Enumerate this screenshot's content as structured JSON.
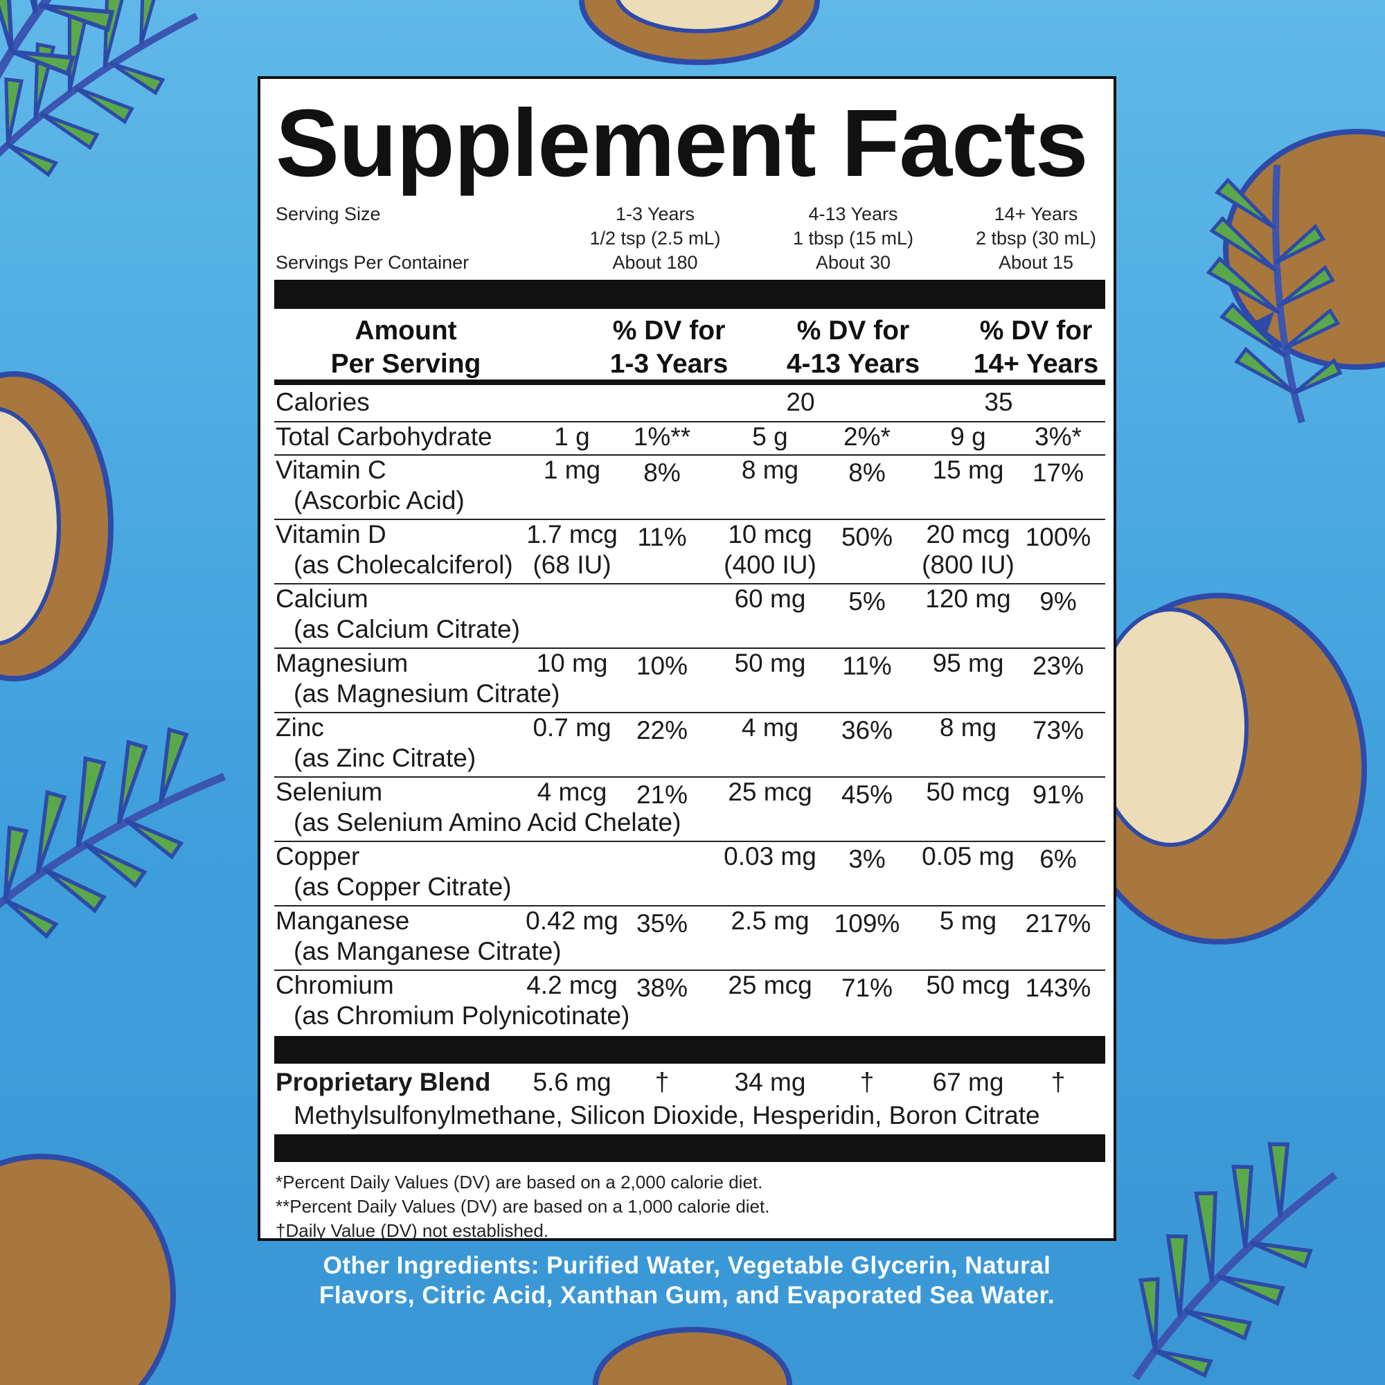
{
  "title": "Supplement Facts",
  "serving": {
    "serving_size_label": "Serving Size",
    "servings_per_container_label": "Servings Per Container",
    "groups": [
      {
        "age": "1-3 Years",
        "size": "1/2 tsp (2.5 mL)",
        "servings": "About 180"
      },
      {
        "age": "4-13 Years",
        "size": "1 tbsp (15 mL)",
        "servings": "About 30"
      },
      {
        "age": "14+ Years",
        "size": "2 tbsp (30 mL)",
        "servings": "About 15"
      }
    ]
  },
  "header": {
    "amount_line1": "Amount",
    "amount_line2": "Per Serving",
    "dv1_line1": "% DV for",
    "dv1_line2": "1-3 Years",
    "dv2_line1": "% DV for",
    "dv2_line2": "4-13 Years",
    "dv3_line1": "% DV for",
    "dv3_line2": "14+ Years"
  },
  "calories": {
    "label": "Calories",
    "v2": "20",
    "v3": "35"
  },
  "carbohydrate": {
    "label": "Total Carbohydrate",
    "a1": "1 g",
    "d1": "1%**",
    "a2": "5 g",
    "d2": "2%*",
    "a3": "9 g",
    "d3": "3%*"
  },
  "nutrients": [
    {
      "name": "Vitamin C",
      "sub": "(Ascorbic Acid)",
      "a1": "1 mg",
      "a1b": "",
      "d1": "8%",
      "a2": "8 mg",
      "a2b": "",
      "d2": "8%",
      "a3": "15 mg",
      "a3b": "",
      "d3": "17%"
    },
    {
      "name": "Vitamin D",
      "sub": "(as Cholecalciferol)",
      "a1": "1.7 mcg",
      "a1b": "(68 IU)",
      "d1": "11%",
      "a2": "10 mcg",
      "a2b": "(400 IU)",
      "d2": "50%",
      "a3": "20 mcg",
      "a3b": "(800 IU)",
      "d3": "100%"
    },
    {
      "name": "Calcium",
      "sub": "(as Calcium Citrate)",
      "a1": "",
      "a1b": "",
      "d1": "",
      "a2": "60 mg",
      "a2b": "",
      "d2": "5%",
      "a3": "120 mg",
      "a3b": "",
      "d3": "9%"
    },
    {
      "name": "Magnesium",
      "sub": "(as Magnesium Citrate)",
      "a1": "10 mg",
      "a1b": "",
      "d1": "10%",
      "a2": "50 mg",
      "a2b": "",
      "d2": "11%",
      "a3": "95 mg",
      "a3b": "",
      "d3": "23%"
    },
    {
      "name": "Zinc",
      "sub": "(as Zinc Citrate)",
      "a1": "0.7 mg",
      "a1b": "",
      "d1": "22%",
      "a2": "4 mg",
      "a2b": "",
      "d2": "36%",
      "a3": "8 mg",
      "a3b": "",
      "d3": "73%"
    },
    {
      "name": "Selenium",
      "sub": "(as Selenium Amino Acid Chelate)",
      "a1": "4 mcg",
      "a1b": "",
      "d1": "21%",
      "a2": "25 mcg",
      "a2b": "",
      "d2": "45%",
      "a3": "50 mcg",
      "a3b": "",
      "d3": "91%"
    },
    {
      "name": "Copper",
      "sub": "(as Copper Citrate)",
      "a1": "",
      "a1b": "",
      "d1": "",
      "a2": "0.03 mg",
      "a2b": "",
      "d2": "3%",
      "a3": "0.05 mg",
      "a3b": "",
      "d3": "6%"
    },
    {
      "name": "Manganese",
      "sub": "(as Manganese Citrate)",
      "a1": "0.42 mg",
      "a1b": "",
      "d1": "35%",
      "a2": "2.5 mg",
      "a2b": "",
      "d2": "109%",
      "a3": "5 mg",
      "a3b": "",
      "d3": "217%"
    },
    {
      "name": "Chromium",
      "sub": "(as Chromium Polynicotinate)",
      "a1": "4.2 mcg",
      "a1b": "",
      "d1": "38%",
      "a2": "25 mcg",
      "a2b": "",
      "d2": "71%",
      "a3": "50 mcg",
      "a3b": "",
      "d3": "143%"
    }
  ],
  "blend": {
    "label": "Proprietary Blend",
    "a1": "5.6 mg",
    "d1": "†",
    "a2": "34 mg",
    "d2": "†",
    "a3": "67 mg",
    "d3": "†",
    "ingredients": "Methylsulfonylmethane, Silicon Dioxide, Hesperidin, Boron Citrate"
  },
  "footnotes": {
    "f1": "*Percent Daily Values (DV) are based on a 2,000 calorie diet.",
    "f2": "**Percent Daily Values (DV) are based on a 1,000 calorie diet.",
    "f3": "†Daily Value (DV) not established."
  },
  "other_ingredients": {
    "line1": "Other Ingredients: Purified Water, Vegetable Glycerin, Natural",
    "line2": "Flavors, Citric Acid, Xanthan Gum, and Evaporated Sea Water."
  },
  "colors": {
    "background": "#4aa8e0",
    "coconut_shell": "#a8773d",
    "coconut_flesh": "#ecdcb8",
    "outline": "#2e4aa8",
    "leaf": "#5aa84a"
  }
}
